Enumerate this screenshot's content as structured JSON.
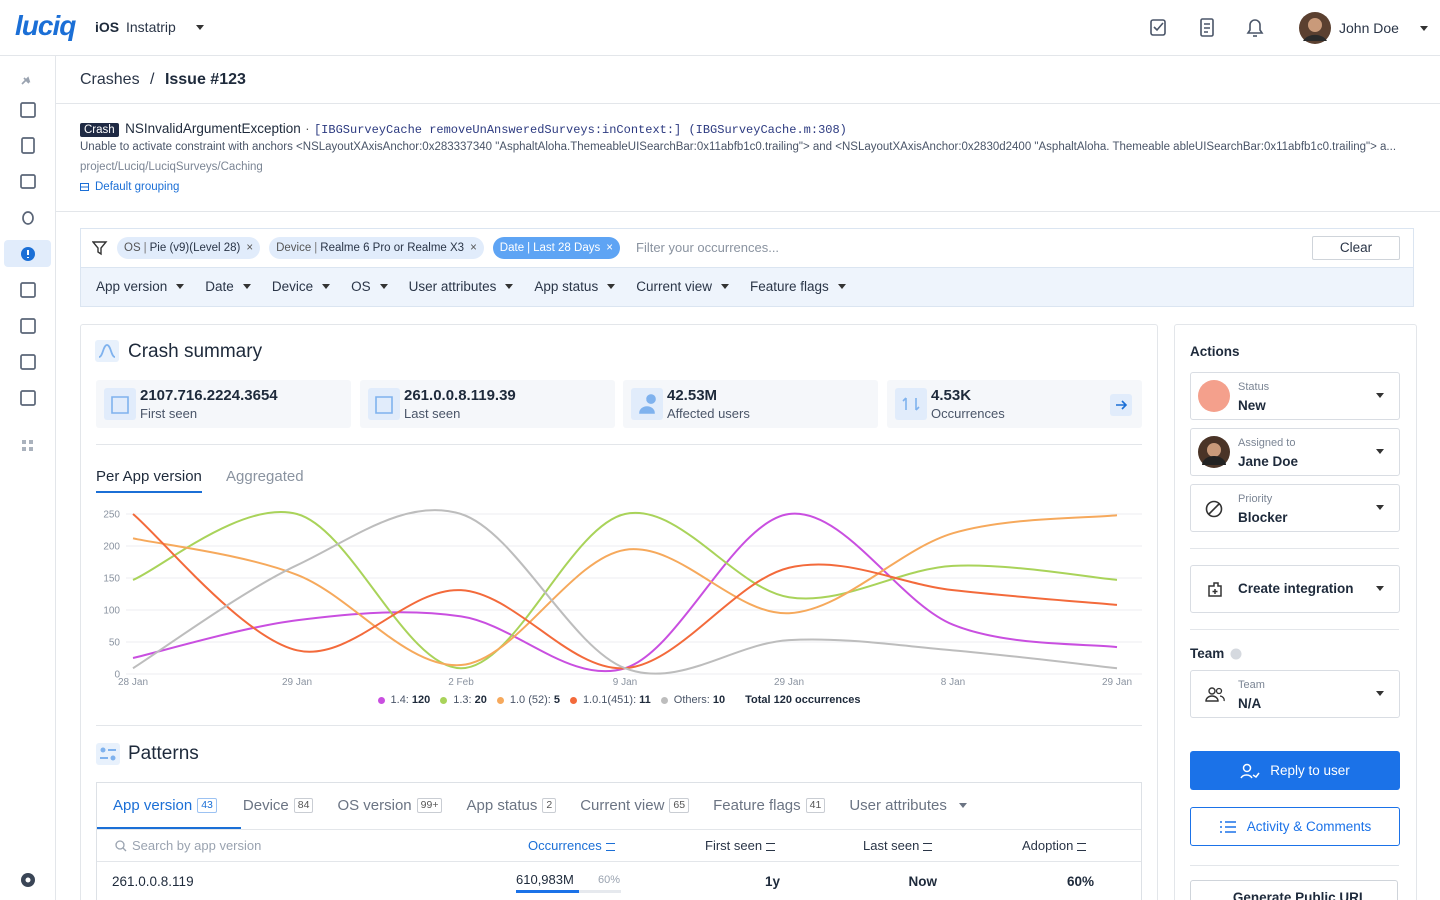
{
  "header": {
    "logo": "luciq",
    "platform": "iOS",
    "app": "Instatrip",
    "user": "John Doe"
  },
  "breadcrumb": {
    "section": "Crashes",
    "separator": "/",
    "current": "Issue #123"
  },
  "issue": {
    "type": "Crash",
    "exception": "NSInvalidArgumentException",
    "separator": "·",
    "signature": "[IBGSurveyCache removeUnAnsweredSurveys:inContext:] (IBGSurveyCache.m:308)",
    "message": "Unable to activate constraint with anchors <NSLayoutXAxisAnchor:0x283337340 \"AsphaltAloha.ThemeableUISearchBar:0x11abfb1c0.trailing\"> and <NSLayoutXAxisAnchor:0x2830d2400 \"AsphaltAloha. Themeable ableUISearchBar:0x11abfb1c0.trailing\"> a...",
    "path": "project/Luciq/LuciqSurveys/Caching",
    "grouping": "Default grouping"
  },
  "filters": {
    "chips": [
      {
        "key": "OS",
        "value": "Pie (v9)(Level 28)"
      },
      {
        "key": "Device",
        "value": "Realme 6 Pro or Realme X3"
      },
      {
        "key": "Date",
        "value": "Last 28 Days"
      }
    ],
    "chip_separator": "|",
    "chip_remove": "×",
    "placeholder": "Filter your occurrences...",
    "clear": "Clear",
    "dropdowns": [
      "App version",
      "Date",
      "Device",
      "OS",
      "User attributes",
      "App status",
      "Current view",
      "Feature flags"
    ]
  },
  "summary": {
    "title": "Crash summary",
    "stats": [
      {
        "value": "2107.716.2224.3654",
        "label": "First seen"
      },
      {
        "value": "261.0.0.8.119.39",
        "label": "Last seen"
      },
      {
        "value": "42.53M",
        "label": "Affected users"
      },
      {
        "value": "4.53K",
        "label": "Occurrences"
      }
    ],
    "tabs": [
      "Per App version",
      "Aggregated"
    ],
    "total": "Total 120 occurrences"
  },
  "chart_data": {
    "type": "line",
    "categories": [
      "28 Jan",
      "29 Jan",
      "2 Feb",
      "9 Jan",
      "29 Jan",
      "8 Jan",
      "29 Jan"
    ],
    "ylim": [
      0,
      250
    ],
    "yticks": [
      0,
      50,
      100,
      150,
      200,
      250
    ],
    "grid": true,
    "series": [
      {
        "name": "1.4:",
        "count": 120,
        "color": "#c94fe0",
        "values": [
          25,
          84,
          90,
          9,
          250,
          77,
          42
        ]
      },
      {
        "name": "1.3:",
        "count": 20,
        "color": "#a9d35a",
        "values": [
          147,
          250,
          9,
          250,
          120,
          169,
          147
        ]
      },
      {
        "name": "1.0 (52):",
        "count": 5,
        "color": "#f6a95c",
        "values": [
          212,
          155,
          14,
          194,
          95,
          220,
          248
        ]
      },
      {
        "name": "1.0.1(451):",
        "count": 11,
        "color": "#f36a3b",
        "values": [
          250,
          37,
          131,
          9,
          166,
          131,
          108
        ]
      },
      {
        "name": "Others:",
        "count": 10,
        "color": "#bdbdbd",
        "values": [
          9,
          170,
          250,
          9,
          53,
          37,
          9
        ]
      }
    ]
  },
  "patterns": {
    "title": "Patterns",
    "tabs": [
      {
        "label": "App version",
        "count": "43"
      },
      {
        "label": "Device",
        "count": "84"
      },
      {
        "label": "OS version",
        "count": "99+"
      },
      {
        "label": "App status",
        "count": "2"
      },
      {
        "label": "Current view",
        "count": "65"
      },
      {
        "label": "Feature flags",
        "count": "41"
      },
      {
        "label": "User attributes"
      }
    ],
    "search": "Search by app version",
    "columns": [
      "Occurrences",
      "First seen",
      "Last seen",
      "Adoption"
    ],
    "rows": [
      {
        "version": "261.0.0.8.119",
        "occurrences": "610,983M",
        "share": 60,
        "share_label": "60%",
        "first_seen": "1y",
        "last_seen": "Now",
        "adoption": "60%"
      }
    ]
  },
  "actions": {
    "title": "Actions",
    "fields": [
      {
        "label": "Status",
        "value": "New"
      },
      {
        "label": "Assigned to",
        "value": "Jane Doe"
      },
      {
        "label": "Priority",
        "value": "Blocker"
      }
    ],
    "integration": "Create integration",
    "team_title": "Team",
    "team": {
      "label": "Team",
      "value": "N/A"
    },
    "reply": "Reply to user",
    "activity": "Activity & Comments",
    "public_url": "Generate Public URL"
  }
}
